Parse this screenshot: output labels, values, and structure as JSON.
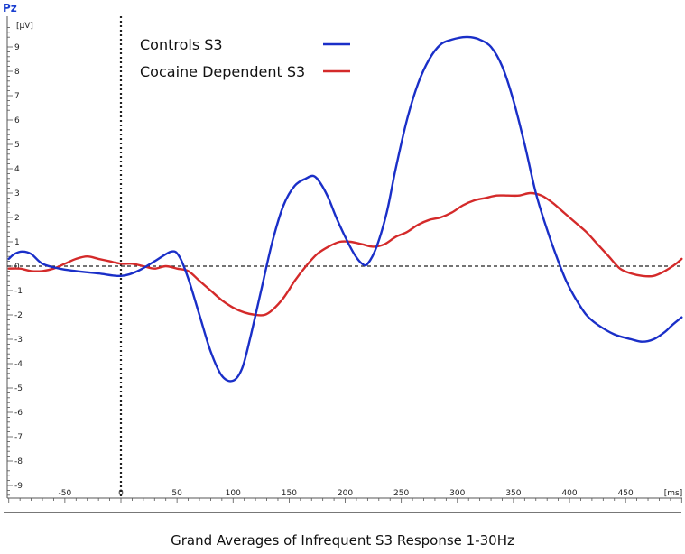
{
  "chart_data": {
    "type": "line",
    "title": "Grand Averages of Infrequent S3 Response 1-30Hz",
    "channel_label": "Pz",
    "y_unit_label": "[µV]",
    "x_unit_label": "[ms]",
    "xlim": [
      -100,
      500
    ],
    "ylim": [
      -9.5,
      10
    ],
    "x_ticks": [
      -50,
      0,
      50,
      100,
      150,
      200,
      250,
      300,
      350,
      400,
      450
    ],
    "y_ticks": [
      9,
      8,
      7,
      6,
      5,
      4,
      3,
      2,
      1,
      0,
      -1,
      -2,
      -3,
      -4,
      -5,
      -6,
      -7,
      -8,
      -9
    ],
    "zero_line": "dashed",
    "stimulus_onset_line": "dotted at 0 ms",
    "legend_position": "top-center",
    "series": [
      {
        "name": "Controls S3",
        "color": "#1a2fc8",
        "x": [
          -100,
          -95,
          -88,
          -80,
          -70,
          -55,
          -40,
          -20,
          0,
          15,
          30,
          45,
          52,
          60,
          70,
          80,
          90,
          100,
          108,
          115,
          125,
          135,
          145,
          155,
          165,
          172,
          178,
          185,
          192,
          200,
          208,
          215,
          220,
          228,
          237,
          245,
          255,
          265,
          275,
          285,
          295,
          305,
          312,
          320,
          330,
          340,
          350,
          360,
          370,
          380,
          390,
          397,
          405,
          415,
          425,
          440,
          455,
          465,
          475,
          485,
          492,
          500
        ],
        "values": [
          0.3,
          0.5,
          0.6,
          0.5,
          0.1,
          -0.1,
          -0.2,
          -0.3,
          -0.4,
          -0.2,
          0.2,
          0.6,
          0.4,
          -0.5,
          -2.0,
          -3.5,
          -4.5,
          -4.7,
          -4.2,
          -3.0,
          -1.0,
          1.0,
          2.5,
          3.3,
          3.6,
          3.7,
          3.4,
          2.8,
          2.0,
          1.2,
          0.5,
          0.1,
          0.1,
          0.8,
          2.2,
          4.0,
          6.0,
          7.5,
          8.5,
          9.1,
          9.3,
          9.4,
          9.4,
          9.3,
          9.0,
          8.2,
          6.8,
          5.0,
          3.0,
          1.5,
          0.2,
          -0.6,
          -1.3,
          -2.0,
          -2.4,
          -2.8,
          -3.0,
          -3.1,
          -3.0,
          -2.7,
          -2.4,
          -2.1
        ]
      },
      {
        "name": "Cocaine Dependent S3",
        "color": "#d42a2a",
        "x": [
          -100,
          -90,
          -80,
          -70,
          -60,
          -50,
          -40,
          -30,
          -20,
          -10,
          0,
          10,
          20,
          30,
          40,
          50,
          60,
          70,
          80,
          90,
          100,
          110,
          120,
          128,
          135,
          145,
          155,
          165,
          175,
          185,
          195,
          205,
          215,
          225,
          235,
          245,
          255,
          265,
          275,
          285,
          295,
          305,
          315,
          325,
          335,
          345,
          355,
          365,
          375,
          385,
          395,
          405,
          415,
          425,
          435,
          445,
          455,
          465,
          475,
          485,
          495,
          500
        ],
        "values": [
          -0.1,
          -0.1,
          -0.2,
          -0.2,
          -0.1,
          0.1,
          0.3,
          0.4,
          0.3,
          0.2,
          0.1,
          0.1,
          0.0,
          -0.1,
          0.0,
          -0.1,
          -0.2,
          -0.6,
          -1.0,
          -1.4,
          -1.7,
          -1.9,
          -2.0,
          -2.0,
          -1.8,
          -1.3,
          -0.6,
          0.0,
          0.5,
          0.8,
          1.0,
          1.0,
          0.9,
          0.8,
          0.9,
          1.2,
          1.4,
          1.7,
          1.9,
          2.0,
          2.2,
          2.5,
          2.7,
          2.8,
          2.9,
          2.9,
          2.9,
          3.0,
          2.9,
          2.6,
          2.2,
          1.8,
          1.4,
          0.9,
          0.4,
          -0.1,
          -0.3,
          -0.4,
          -0.4,
          -0.2,
          0.1,
          0.3
        ]
      }
    ]
  }
}
